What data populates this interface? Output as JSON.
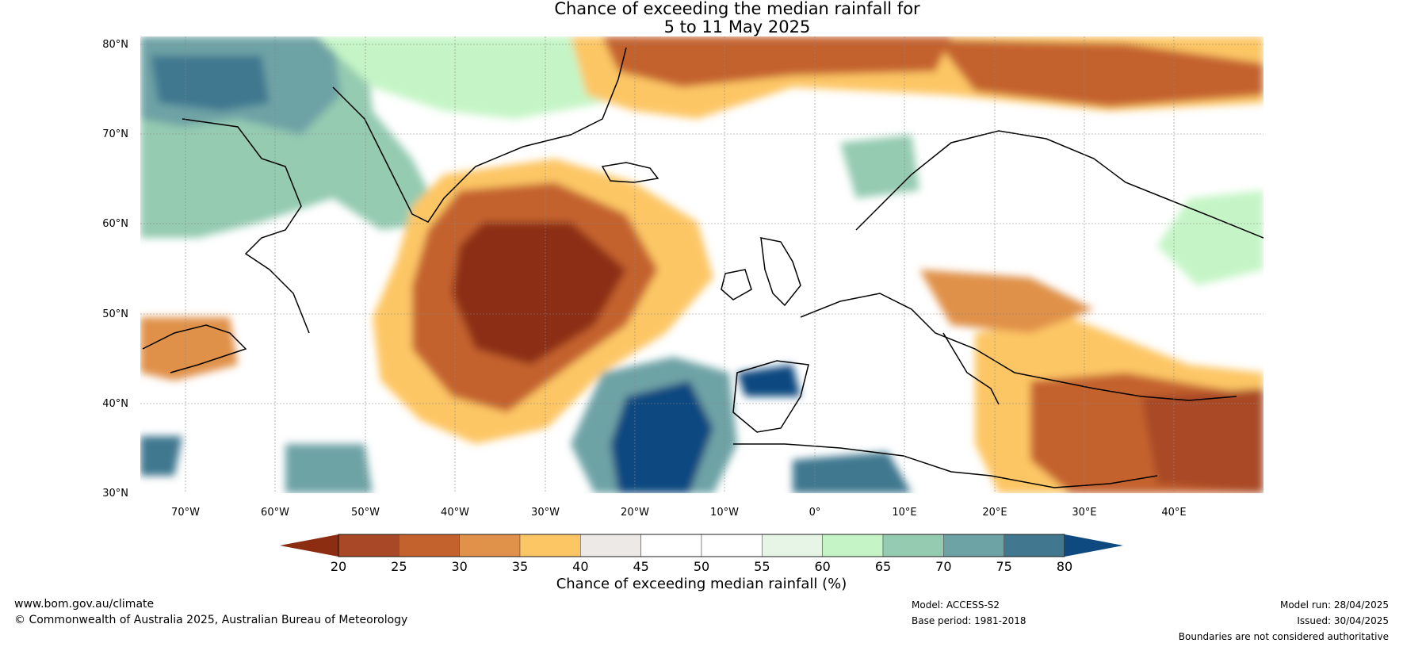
{
  "title": {
    "line1": "Chance of exceeding the median rainfall for",
    "line2": "5 to 11 May 2025"
  },
  "map": {
    "lat_labels": [
      "80°N",
      "70°N",
      "60°N",
      "50°N",
      "40°N",
      "30°N"
    ],
    "lon_labels": [
      "70°W",
      "60°W",
      "50°W",
      "40°W",
      "30°W",
      "20°W",
      "10°W",
      "0°",
      "10°E",
      "20°E",
      "30°E",
      "40°E"
    ],
    "lat_range": [
      30,
      81
    ],
    "lon_range": [
      -75,
      50
    ]
  },
  "colorbar": {
    "ticks": [
      "20",
      "25",
      "30",
      "35",
      "40",
      "45",
      "50",
      "55",
      "60",
      "65",
      "70",
      "75",
      "80"
    ],
    "under_color": "#8c2d12",
    "over_color": "#0e4a80",
    "colors": [
      "#a94826",
      "#c4622e",
      "#e0914a",
      "#fdc665",
      "#ede9e6",
      "#ffffff",
      "#ffffff",
      "#e6f5e6",
      "#c5f5c6",
      "#94cbb1",
      "#6ea3a6",
      "#417890"
    ],
    "title": "Chance of exceeding median rainfall (%)"
  },
  "footer": {
    "website": "www.bom.gov.au/climate",
    "copyright": "© Commonwealth of Australia 2025, Australian Bureau of Meteorology",
    "model": "Model: ACCESS-S2",
    "base_period": "Base period: 1981-2018",
    "model_run": "Model run: 28/04/2025",
    "issued": "Issued: 30/04/2025",
    "disclaimer": "Boundaries are not considered authoritative"
  }
}
